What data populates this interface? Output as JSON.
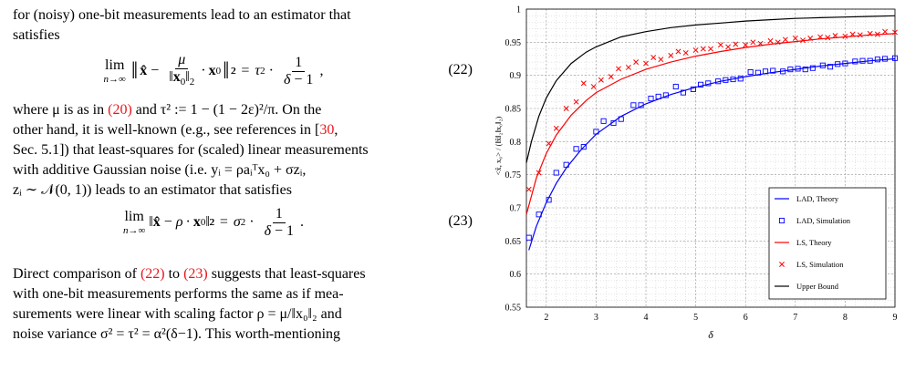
{
  "text": {
    "p1_line1": "for (noisy) one-bit measurements lead to an estimator that",
    "p1_line2": "satisfies",
    "eq22_number": "(22)",
    "p2_line1_a": "where μ is as in ",
    "p2_line1_ref": "(20)",
    "p2_line1_b": " and τ² := 1 − (1 − 2ε)²/π. On the",
    "p2_line2_a": "other hand, it is well-known (e.g., see references in [",
    "p2_line2_ref": "30",
    "p2_line2_b": ",",
    "p2_line3": "Sec. 5.1]) that least-squares for (scaled) linear measurements",
    "p2_line4": "with additive Gaussian noise (i.e. yᵢ = ρaᵢᵀx₀ + σzᵢ,",
    "p2_line5": "zᵢ ∼ 𝒩(0, 1)) leads to an estimator that satisfies",
    "eq23_number": "(23)",
    "p3_line1_a": "Direct comparison of ",
    "p3_line1_ref1": "(22)",
    "p3_line1_mid": " to ",
    "p3_line1_ref2": "(23)",
    "p3_line1_b": " suggests that least-squares",
    "p3_line2": "with one-bit measurements performs the same as if mea-",
    "p3_line3": "surements were linear with scaling factor ρ = μ/‖x₀‖₂ and",
    "p3_line4": "noise variance σ² = τ² = α²(δ−1). This worth-mentioning"
  },
  "colors": {
    "link_red": "#e8161c",
    "lad_blue": "#0000ff",
    "ls_red": "#ff0000",
    "upper_black": "#000000"
  },
  "chart_data": {
    "type": "line",
    "xlabel": "δ",
    "ylabel": "<x̂, x₀> / (‖x̂‖₂‖x₀‖₂)",
    "xlim": [
      1.6,
      9
    ],
    "ylim": [
      0.55,
      1
    ],
    "xticks": [
      "2",
      "3",
      "4",
      "5",
      "6",
      "7",
      "8",
      "9"
    ],
    "yticks": [
      "0.55",
      "0.6",
      "0.65",
      "0.7",
      "0.75",
      "0.8",
      "0.85",
      "0.9",
      "0.95",
      "1"
    ],
    "grid": true,
    "legend_position": "bottom-right",
    "series": [
      {
        "name": "LAD, Theory",
        "kind": "line",
        "color": "#0000ff",
        "x": [
          1.65,
          1.8,
          2.0,
          2.2,
          2.4,
          2.7,
          3.0,
          3.5,
          4.0,
          4.5,
          5.0,
          5.5,
          6.0,
          6.5,
          7.0,
          7.5,
          8.0,
          8.5,
          9.0
        ],
        "y": [
          0.636,
          0.672,
          0.708,
          0.737,
          0.76,
          0.788,
          0.811,
          0.838,
          0.857,
          0.871,
          0.882,
          0.891,
          0.898,
          0.904,
          0.909,
          0.914,
          0.918,
          0.922,
          0.925
        ]
      },
      {
        "name": "LAD, Simulation",
        "kind": "square",
        "color": "#0000ff",
        "x": [
          1.65,
          1.85,
          2.05,
          2.2,
          2.4,
          2.6,
          2.75,
          3.0,
          3.15,
          3.35,
          3.5,
          3.75,
          3.9,
          4.1,
          4.25,
          4.4,
          4.6,
          4.75,
          4.95,
          5.1,
          5.25,
          5.45,
          5.6,
          5.75,
          5.9,
          6.1,
          6.25,
          6.4,
          6.55,
          6.75,
          6.9,
          7.05,
          7.2,
          7.35,
          7.55,
          7.7,
          7.85,
          8.0,
          8.2,
          8.35,
          8.5,
          8.65,
          8.8,
          9.0
        ],
        "y": [
          0.655,
          0.69,
          0.712,
          0.753,
          0.765,
          0.789,
          0.792,
          0.815,
          0.831,
          0.828,
          0.834,
          0.855,
          0.855,
          0.865,
          0.868,
          0.87,
          0.883,
          0.874,
          0.879,
          0.886,
          0.888,
          0.891,
          0.893,
          0.894,
          0.895,
          0.905,
          0.904,
          0.906,
          0.907,
          0.906,
          0.909,
          0.91,
          0.909,
          0.911,
          0.915,
          0.913,
          0.917,
          0.918,
          0.921,
          0.922,
          0.922,
          0.924,
          0.925,
          0.926
        ]
      },
      {
        "name": "LS, Theory",
        "kind": "line",
        "color": "#ff0000",
        "x": [
          1.6,
          1.8,
          2.0,
          2.2,
          2.5,
          2.8,
          3.0,
          3.5,
          4.0,
          4.5,
          5.0,
          5.5,
          6.0,
          6.5,
          7.0,
          7.5,
          8.0,
          8.5,
          9.0
        ],
        "y": [
          0.69,
          0.745,
          0.782,
          0.81,
          0.84,
          0.862,
          0.874,
          0.894,
          0.909,
          0.92,
          0.929,
          0.936,
          0.942,
          0.947,
          0.951,
          0.955,
          0.958,
          0.961,
          0.963
        ]
      },
      {
        "name": "LS, Simulation",
        "kind": "x",
        "color": "#ff0000",
        "x": [
          1.65,
          1.85,
          2.05,
          2.2,
          2.4,
          2.6,
          2.75,
          2.95,
          3.1,
          3.3,
          3.45,
          3.65,
          3.8,
          4.0,
          4.15,
          4.3,
          4.5,
          4.65,
          4.8,
          5.0,
          5.15,
          5.3,
          5.5,
          5.65,
          5.8,
          6.0,
          6.15,
          6.3,
          6.5,
          6.65,
          6.8,
          7.0,
          7.15,
          7.3,
          7.5,
          7.65,
          7.8,
          8.0,
          8.15,
          8.3,
          8.5,
          8.65,
          8.8,
          9.0
        ],
        "y": [
          0.728,
          0.753,
          0.797,
          0.82,
          0.85,
          0.86,
          0.888,
          0.883,
          0.893,
          0.898,
          0.91,
          0.912,
          0.92,
          0.918,
          0.927,
          0.924,
          0.93,
          0.936,
          0.934,
          0.938,
          0.94,
          0.94,
          0.946,
          0.943,
          0.947,
          0.946,
          0.95,
          0.948,
          0.952,
          0.95,
          0.954,
          0.956,
          0.953,
          0.956,
          0.958,
          0.957,
          0.96,
          0.959,
          0.962,
          0.961,
          0.963,
          0.962,
          0.966,
          0.965
        ]
      },
      {
        "name": "Upper Bound",
        "kind": "line",
        "color": "#000000",
        "x": [
          1.6,
          1.7,
          1.85,
          2.0,
          2.2,
          2.5,
          2.8,
          3.0,
          3.5,
          4.0,
          4.5,
          5.0,
          5.5,
          6.0,
          6.5,
          7.0,
          7.5,
          8.0,
          8.5,
          9.0
        ],
        "y": [
          0.768,
          0.8,
          0.838,
          0.866,
          0.892,
          0.918,
          0.935,
          0.943,
          0.958,
          0.966,
          0.972,
          0.976,
          0.979,
          0.982,
          0.984,
          0.986,
          0.987,
          0.988,
          0.989,
          0.99
        ]
      }
    ]
  }
}
